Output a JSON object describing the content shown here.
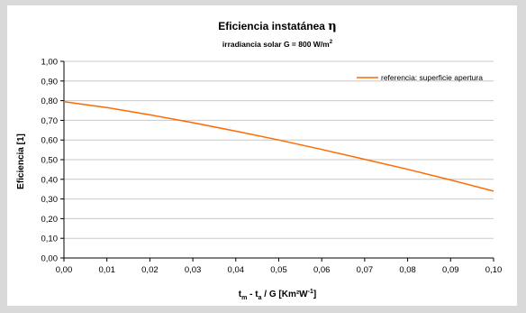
{
  "chart_data": {
    "type": "line",
    "title": "Eficiencia instatánea",
    "title_symbol": "η",
    "subtitle": "irradiancia solar  G = 800 W/m",
    "subtitle_sup": "2",
    "ylabel": "Eficiencia [1]",
    "xlabel_parts": {
      "t": "t",
      "m": "m",
      "minus": " - t",
      "a": "a",
      "rest": " / G  [Km²W",
      "exp": "-1",
      "close": "]"
    },
    "xlim": [
      0.0,
      0.1
    ],
    "ylim": [
      0.0,
      1.0
    ],
    "x_ticks": [
      "0,00",
      "0,01",
      "0,02",
      "0,03",
      "0,04",
      "0,05",
      "0,06",
      "0,07",
      "0,08",
      "0,09",
      "0,10"
    ],
    "y_ticks": [
      "0,00",
      "0,10",
      "0,20",
      "0,30",
      "0,40",
      "0,50",
      "0,60",
      "0,70",
      "0,80",
      "0,90",
      "1,00"
    ],
    "grid": "horizontal",
    "legend_position": "top-right",
    "series": [
      {
        "name": "referencia: superficie apertura",
        "color": "#ff6a00",
        "x": [
          0.0,
          0.01,
          0.02,
          0.03,
          0.04,
          0.05,
          0.06,
          0.07,
          0.08,
          0.09,
          0.1
        ],
        "y": [
          0.795,
          0.765,
          0.728,
          0.688,
          0.645,
          0.6,
          0.552,
          0.502,
          0.451,
          0.397,
          0.34
        ]
      }
    ]
  }
}
